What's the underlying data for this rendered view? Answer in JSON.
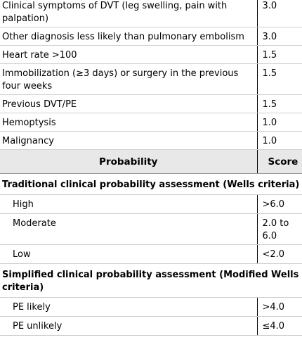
{
  "criteria": [
    {
      "label": "Clinical symptoms of DVT (leg swelling, pain with palpation)",
      "score": "3.0"
    },
    {
      "label": "Other diagnosis less likely than pulmonary embolism",
      "score": "3.0"
    },
    {
      "label": "Heart rate >100",
      "score": "1.5"
    },
    {
      "label": "Immobilization (≥3 days) or surgery in the previous four weeks",
      "score": "1.5"
    },
    {
      "label": "Previous DVT/PE",
      "score": "1.5"
    },
    {
      "label": "Hemoptysis",
      "score": "1.0"
    },
    {
      "label": "Malignancy",
      "score": "1.0"
    }
  ],
  "header": {
    "probability": "Probability",
    "score": "Score"
  },
  "traditional": {
    "title": "Traditional clinical probability assessment (Wells criteria)",
    "rows": [
      {
        "label": "High",
        "score": ">6.0"
      },
      {
        "label": "Moderate",
        "score": "2.0 to 6.0"
      },
      {
        "label": "Low",
        "score": "<2.0"
      }
    ]
  },
  "simplified": {
    "title": "Simplified clinical probability assessment (Modified Wells criteria)",
    "rows": [
      {
        "label": "PE likely",
        "score": ">4.0"
      },
      {
        "label": "PE unlikely",
        "score": "≤4.0"
      }
    ]
  }
}
